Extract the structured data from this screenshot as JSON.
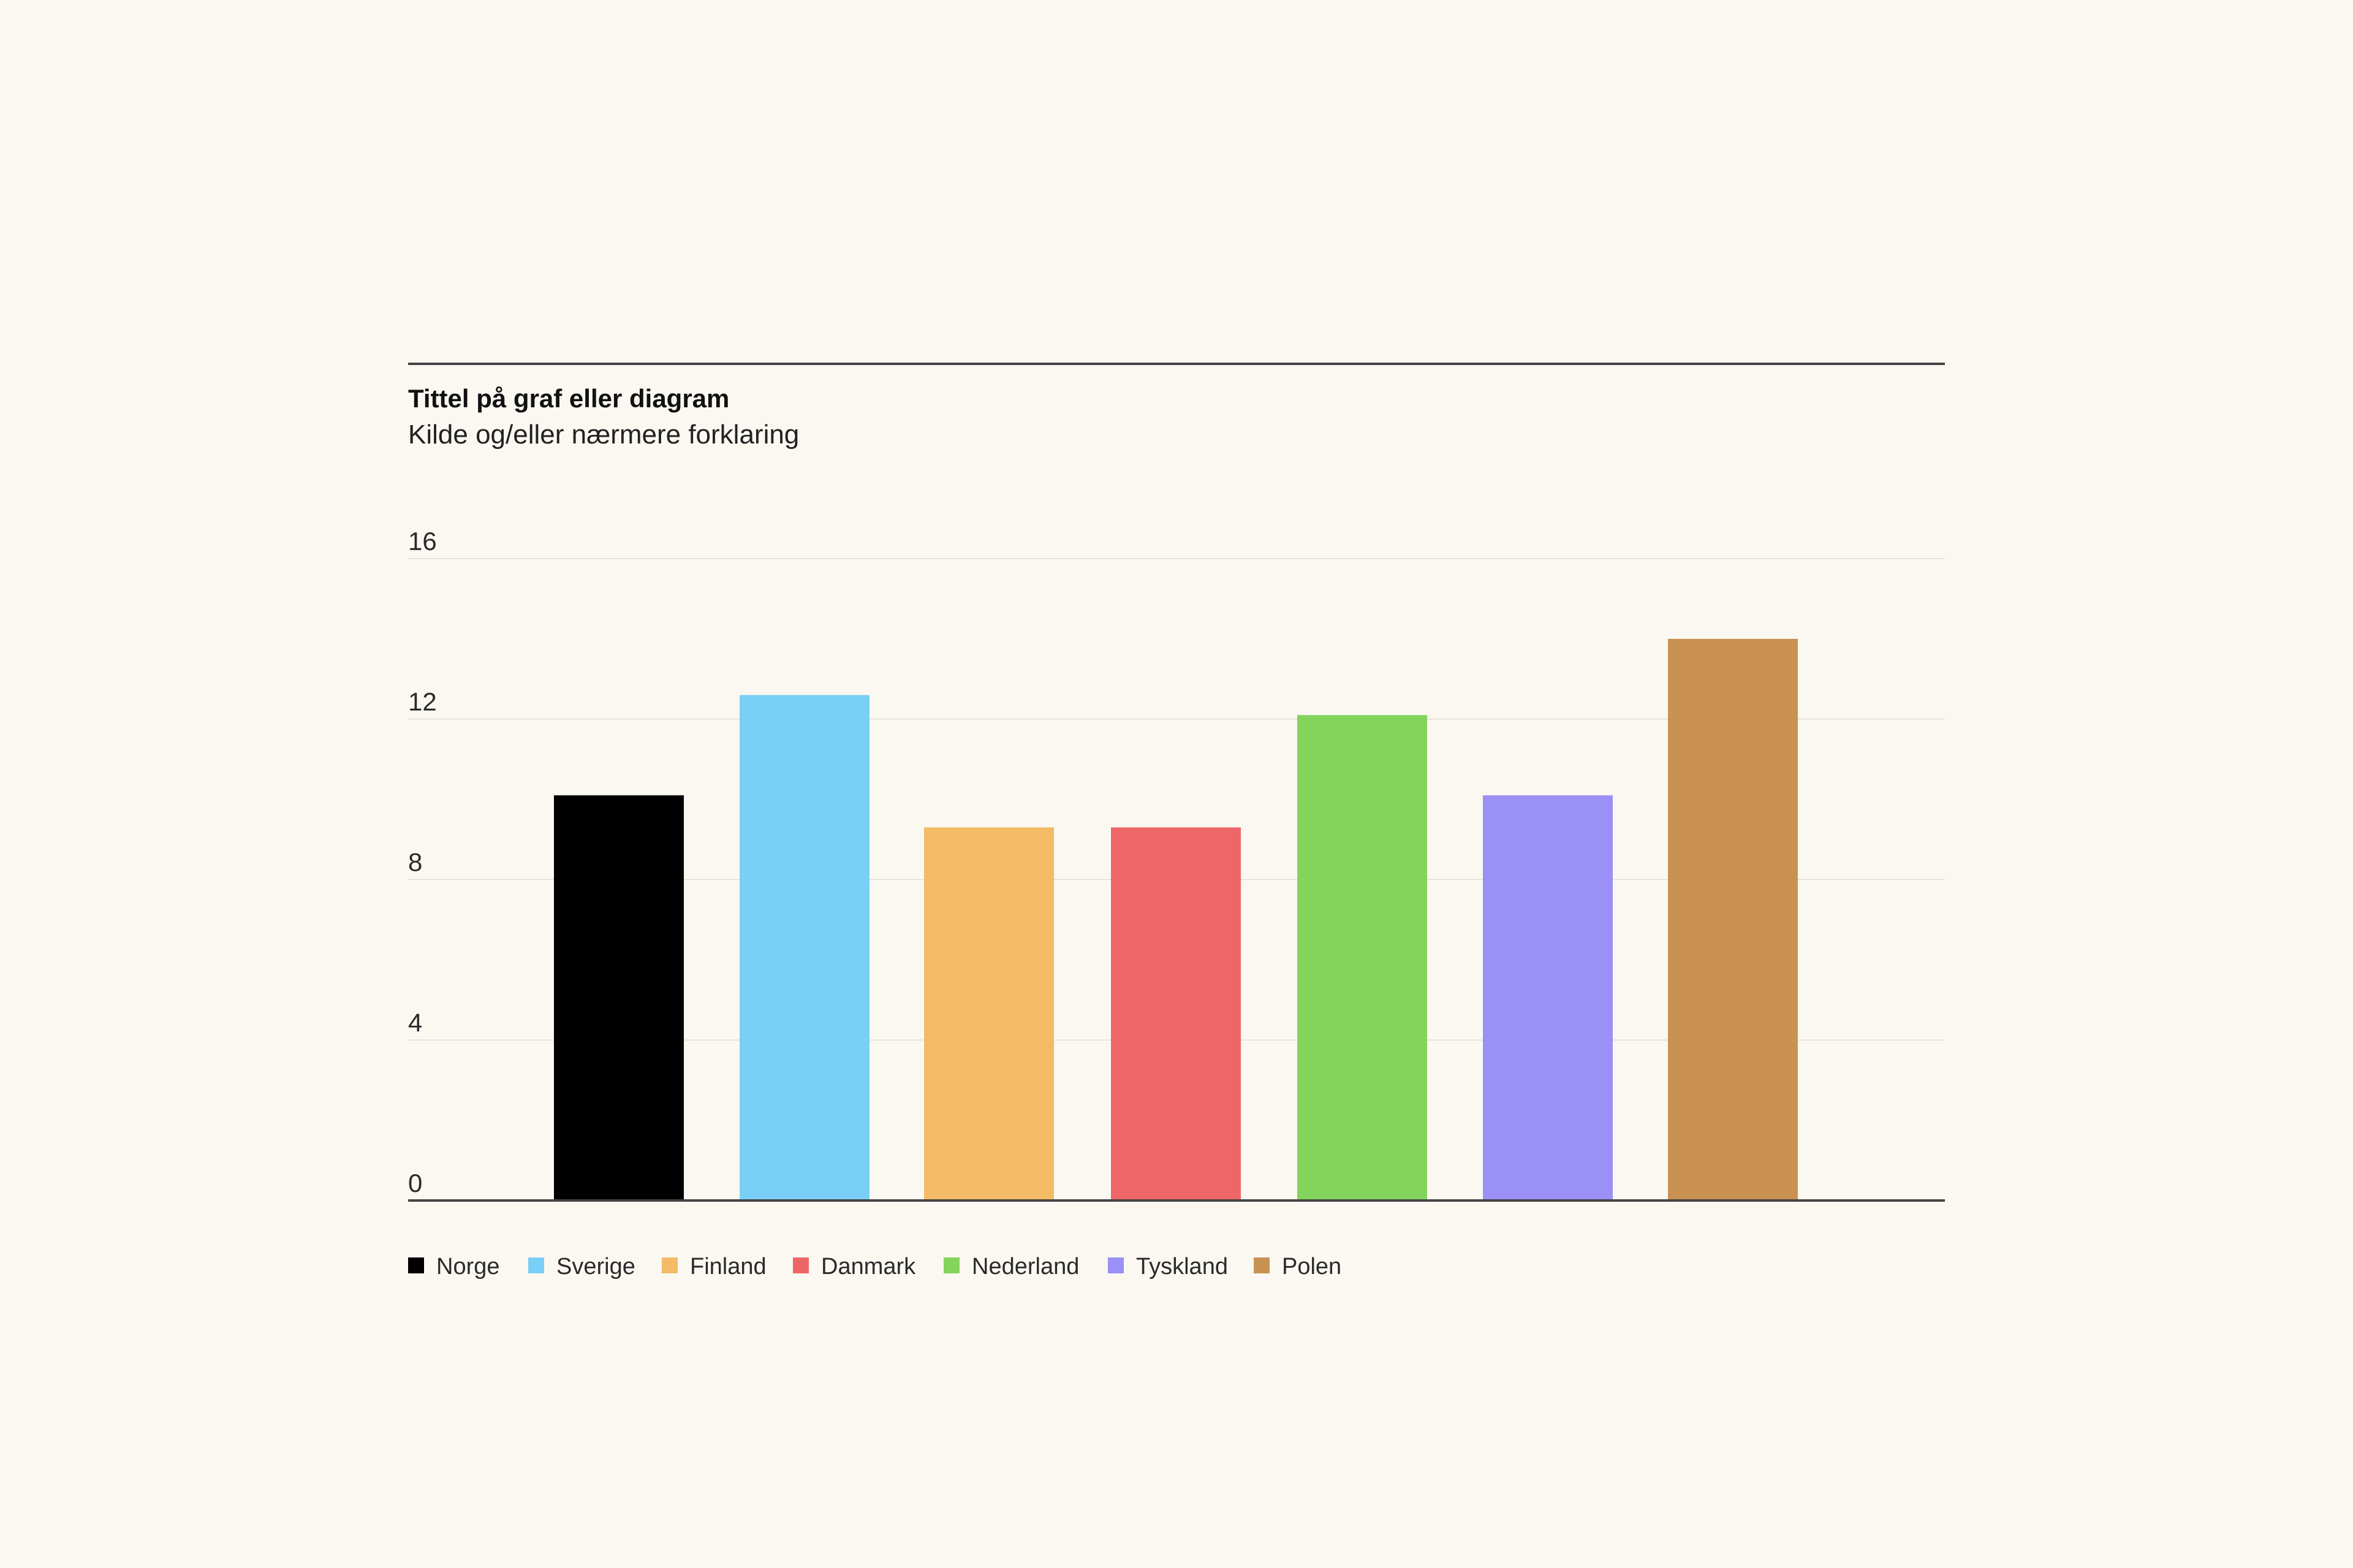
{
  "chart_data": {
    "type": "bar",
    "title": "Tittel på graf eller diagram",
    "subtitle": "Kilde og/eller nærmere forklaring",
    "xlabel": "",
    "ylabel": "",
    "categories": [
      "Norge",
      "Sverige",
      "Finland",
      "Danmark",
      "Nederland",
      "Tyskland",
      "Polen"
    ],
    "values": [
      10.1,
      12.6,
      9.3,
      9.3,
      12.1,
      10.1,
      14.0
    ],
    "colors": [
      "#000000",
      "#79cff5",
      "#f3bb66",
      "#ee6668",
      "#84d35c",
      "#9a90f5",
      "#c99253"
    ],
    "ylim": [
      0,
      16
    ],
    "yticks": [
      0,
      4,
      8,
      12,
      16
    ],
    "ytick_labels": [
      "0",
      "4",
      "8",
      "12",
      "16"
    ],
    "grid": true,
    "legend": {
      "position": "bottom-left",
      "entries": [
        "Norge",
        "Sverige",
        "Finland",
        "Danmark",
        "Nederland",
        "Tyskland",
        "Polen"
      ]
    }
  }
}
